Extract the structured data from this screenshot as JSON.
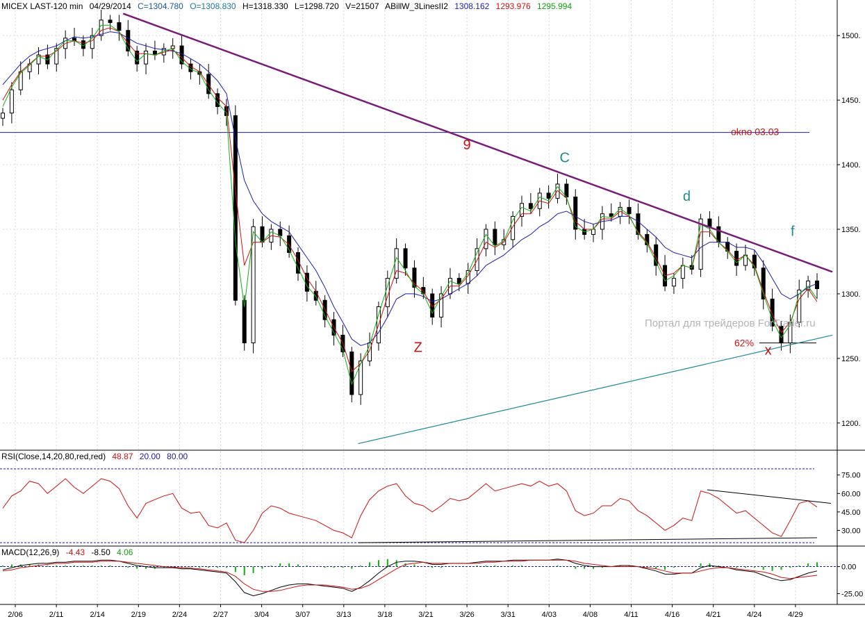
{
  "header": {
    "symbol": "MICEX LAST-120 min",
    "date": "04/29/2014",
    "close": "C=1304.780",
    "open": "O=1308.830",
    "high": "H=1318.330",
    "low": "L=1298.720",
    "volume": "V=21507",
    "indicator": "ABillW_3LinesII2",
    "ind_v1": "1308.162",
    "ind_v2": "1293.976",
    "ind_v3": "1295.994"
  },
  "rsi_header": {
    "label": "RSI(Close,14,20,80,red,red)",
    "value": "48.87",
    "low": "20.00",
    "high": "80.00"
  },
  "macd_header": {
    "label": "MACD(12,26,9)",
    "v1": "-4.43",
    "v2": "-8.50",
    "v3": "4.06"
  },
  "colors": {
    "price": "#000000",
    "ma_blue": "#1a1ab8",
    "ma_red": "#cc1010",
    "ma_green": "#10b010",
    "trend_purple": "#7a1a7a",
    "support_teal": "#1a8a9a",
    "label_red": "#cc1010",
    "label_teal": "#1a8a8a",
    "grid": "#d8d8d8",
    "level_blue": "#1a1a9a"
  },
  "watermark": "Портал для трейдеров ForTrader.ru",
  "chart_data": [
    {
      "type": "candlestick",
      "title": "MICEX LAST-120 min",
      "ylim": [
        1180,
        1520
      ],
      "yticks": [
        1200,
        1250,
        1300,
        1350,
        1400,
        1450,
        1500
      ],
      "ytick_labels": [
        "1200.",
        "1250.",
        "1300.",
        "1350.",
        "1400.",
        "1450.",
        "1500."
      ],
      "xticks": [
        "2/06",
        "2/11",
        "2/14",
        "2/19",
        "2/24",
        "2/27",
        "3/04",
        "3/07",
        "3/13",
        "3/18",
        "3/21",
        "3/26",
        "3/31",
        "4/03",
        "4/08",
        "4/11",
        "4/16",
        "4/21",
        "4/24",
        "4/29"
      ],
      "close_path": [
        1440,
        1458,
        1472,
        1478,
        1485,
        1478,
        1490,
        1498,
        1496,
        1490,
        1500,
        1512,
        1510,
        1504,
        1488,
        1478,
        1488,
        1485,
        1490,
        1492,
        1478,
        1472,
        1470,
        1455,
        1445,
        1438,
        1295,
        1262,
        1352,
        1340,
        1350,
        1345,
        1332,
        1316,
        1302,
        1295,
        1280,
        1268,
        1255,
        1222,
        1248,
        1262,
        1290,
        1312,
        1335,
        1320,
        1305,
        1300,
        1282,
        1300,
        1312,
        1308,
        1318,
        1335,
        1350,
        1338,
        1342,
        1360,
        1370,
        1366,
        1378,
        1374,
        1385,
        1375,
        1350,
        1346,
        1350,
        1362,
        1360,
        1367,
        1362,
        1346,
        1338,
        1322,
        1306,
        1312,
        1322,
        1319,
        1358,
        1352,
        1340,
        1333,
        1322,
        1330,
        1320,
        1296,
        1275,
        1262,
        1278,
        1303,
        1310,
        1304
      ],
      "ma_blue": [
        1462,
        1470,
        1478,
        1484,
        1488,
        1490,
        1492,
        1496,
        1499,
        1498,
        1499,
        1501,
        1503,
        1502,
        1498,
        1494,
        1492,
        1490,
        1489,
        1488,
        1486,
        1482,
        1478,
        1472,
        1465,
        1455,
        1420,
        1388,
        1372,
        1362,
        1356,
        1352,
        1348,
        1338,
        1328,
        1318,
        1305,
        1290,
        1278,
        1265,
        1260,
        1262,
        1270,
        1282,
        1296,
        1300,
        1300,
        1298,
        1294,
        1296,
        1300,
        1304,
        1308,
        1314,
        1322,
        1326,
        1330,
        1336,
        1342,
        1346,
        1352,
        1356,
        1362,
        1364,
        1360,
        1356,
        1354,
        1356,
        1357,
        1360,
        1360,
        1356,
        1350,
        1344,
        1336,
        1332,
        1330,
        1328,
        1336,
        1340,
        1340,
        1340,
        1336,
        1336,
        1334,
        1324,
        1312,
        1300,
        1296,
        1300,
        1305,
        1308
      ],
      "ma_red": [
        1450,
        1462,
        1472,
        1478,
        1484,
        1484,
        1488,
        1494,
        1496,
        1494,
        1496,
        1504,
        1506,
        1503,
        1494,
        1486,
        1486,
        1485,
        1487,
        1489,
        1483,
        1476,
        1472,
        1462,
        1452,
        1445,
        1380,
        1322,
        1340,
        1340,
        1345,
        1344,
        1338,
        1326,
        1312,
        1302,
        1288,
        1274,
        1262,
        1240,
        1246,
        1256,
        1276,
        1298,
        1318,
        1316,
        1308,
        1302,
        1290,
        1296,
        1306,
        1306,
        1314,
        1326,
        1340,
        1336,
        1340,
        1352,
        1362,
        1362,
        1372,
        1370,
        1380,
        1374,
        1356,
        1350,
        1350,
        1358,
        1358,
        1364,
        1360,
        1348,
        1340,
        1328,
        1314,
        1316,
        1322,
        1320,
        1348,
        1348,
        1340,
        1334,
        1326,
        1330,
        1322,
        1302,
        1284,
        1270,
        1278,
        1296,
        1304,
        1294
      ],
      "ma_green": [
        1445,
        1460,
        1471,
        1477,
        1484,
        1481,
        1489,
        1496,
        1496,
        1492,
        1498,
        1508,
        1508,
        1503,
        1490,
        1480,
        1486,
        1485,
        1488,
        1490,
        1480,
        1474,
        1471,
        1458,
        1448,
        1440,
        1340,
        1290,
        1348,
        1340,
        1348,
        1345,
        1334,
        1320,
        1306,
        1298,
        1283,
        1270,
        1257,
        1230,
        1246,
        1260,
        1284,
        1306,
        1328,
        1318,
        1306,
        1300,
        1285,
        1298,
        1310,
        1307,
        1316,
        1332,
        1346,
        1337,
        1341,
        1357,
        1367,
        1364,
        1375,
        1372,
        1383,
        1375,
        1352,
        1348,
        1350,
        1360,
        1359,
        1366,
        1361,
        1347,
        1339,
        1325,
        1310,
        1314,
        1322,
        1320,
        1354,
        1350,
        1340,
        1333,
        1324,
        1330,
        1321,
        1300,
        1280,
        1266,
        1276,
        1300,
        1306,
        1296
      ],
      "levels": [
        {
          "value": 1425,
          "label": "okno 03.03"
        },
        {
          "value": 1262,
          "label": "62%"
        }
      ],
      "trendlines": [
        {
          "name": "resistance",
          "from": [
            0.1,
            1517
          ],
          "to": [
            1.0,
            1317
          ]
        },
        {
          "name": "support",
          "from": [
            0.45,
            1184
          ],
          "to": [
            1.0,
            1268
          ]
        }
      ],
      "wave_labels": [
        {
          "text": "9",
          "x": 0.57,
          "y": 1412
        },
        {
          "text": "C",
          "x": 0.69,
          "y": 1402
        },
        {
          "text": "d",
          "x": 0.84,
          "y": 1372
        },
        {
          "text": "f",
          "x": 0.97,
          "y": 1345
        },
        {
          "text": "Z",
          "x": 0.51,
          "y": 1255
        },
        {
          "text": "x",
          "x": 0.94,
          "y": 1253
        }
      ]
    },
    {
      "type": "line",
      "title": "RSI(Close,14,20,80,red,red)",
      "ylim": [
        15,
        85
      ],
      "yticks": [
        30,
        45,
        60,
        75
      ],
      "ytick_labels": [
        "30.00",
        "45.00",
        "60.00",
        "75.00"
      ],
      "values": [
        48,
        58,
        62,
        70,
        68,
        60,
        66,
        72,
        65,
        60,
        66,
        72,
        70,
        64,
        50,
        40,
        52,
        55,
        58,
        60,
        48,
        44,
        45,
        34,
        32,
        36,
        22,
        20,
        30,
        44,
        50,
        48,
        44,
        42,
        40,
        38,
        34,
        30,
        28,
        24,
        42,
        55,
        62,
        66,
        68,
        58,
        52,
        50,
        45,
        50,
        56,
        54,
        56,
        62,
        68,
        62,
        64,
        66,
        68,
        66,
        70,
        66,
        68,
        62,
        46,
        42,
        44,
        50,
        50,
        56,
        54,
        46,
        42,
        36,
        30,
        34,
        40,
        38,
        62,
        60,
        56,
        50,
        44,
        46,
        40,
        34,
        28,
        25,
        38,
        52,
        54,
        49
      ]
    },
    {
      "type": "line",
      "title": "MACD(12,26,9)",
      "ylim": [
        -35,
        10
      ],
      "yticks": [
        -25,
        0
      ],
      "ytick_labels": [
        "-25.00",
        "0.00"
      ],
      "macd": [
        -3,
        -1,
        1,
        2,
        3,
        3,
        4,
        4,
        5,
        5,
        5,
        6,
        6,
        5,
        3,
        1,
        0,
        -1,
        -1,
        -1,
        -2,
        -2,
        -3,
        -4,
        -5,
        -6,
        -14,
        -24,
        -27,
        -25,
        -22,
        -19,
        -17,
        -16,
        -16,
        -17,
        -18,
        -19,
        -20,
        -23,
        -19,
        -13,
        -6,
        0,
        4,
        5,
        5,
        4,
        2,
        2,
        3,
        3,
        3,
        4,
        5,
        5,
        5,
        6,
        6,
        6,
        6,
        6,
        7,
        6,
        3,
        1,
        0,
        0,
        0,
        1,
        1,
        0,
        -2,
        -4,
        -7,
        -7,
        -6,
        -6,
        -1,
        1,
        0,
        -1,
        -3,
        -4,
        -5,
        -8,
        -11,
        -13,
        -12,
        -9,
        -6,
        -4
      ],
      "signal": [
        -4,
        -3,
        -1,
        0,
        1,
        2,
        3,
        3,
        4,
        4,
        4,
        5,
        5,
        5,
        4,
        3,
        2,
        1,
        0,
        -0.5,
        -1,
        -1.5,
        -2,
        -3,
        -4,
        -5,
        -9,
        -16,
        -21,
        -23,
        -23,
        -22,
        -20,
        -18,
        -17,
        -17,
        -17,
        -18,
        -19,
        -21,
        -20,
        -17,
        -12,
        -7,
        -2,
        2,
        3,
        4,
        3,
        3,
        3,
        3,
        3,
        3,
        4,
        4,
        5,
        5,
        5,
        6,
        6,
        6,
        6,
        6,
        5,
        3,
        2,
        1,
        0,
        0,
        0,
        0,
        -1,
        -2,
        -4,
        -6,
        -6,
        -6,
        -4,
        -2,
        -1,
        -1,
        -2,
        -3,
        -4,
        -5,
        -7,
        -10,
        -11,
        -10,
        -9,
        -8
      ]
    }
  ]
}
